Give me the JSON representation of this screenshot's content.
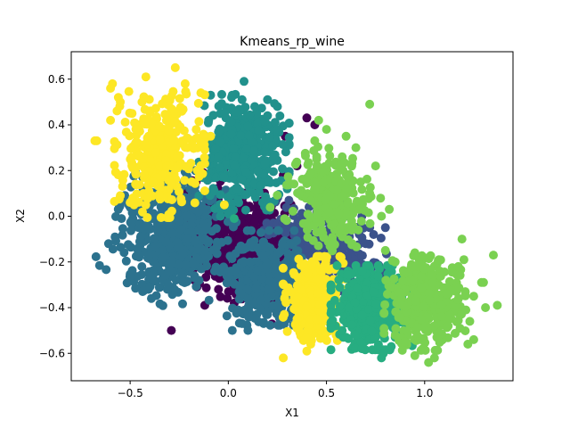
{
  "chart_data": {
    "type": "scatter",
    "title": "Kmeans_rp_wine",
    "xlabel": "X1",
    "ylabel": "X2",
    "xlim": [
      -0.8,
      1.45
    ],
    "ylim": [
      -0.72,
      0.72
    ],
    "xticks": [
      -0.5,
      0.0,
      0.5,
      1.0
    ],
    "xtick_labels": [
      "−0.5",
      "0.0",
      "0.5",
      "1.0"
    ],
    "yticks": [
      -0.6,
      -0.4,
      -0.2,
      0.0,
      0.2,
      0.4,
      0.6
    ],
    "ytick_labels": [
      "−0.6",
      "−0.4",
      "−0.2",
      "0.0",
      "0.2",
      "0.4",
      "0.6"
    ],
    "grid": false,
    "legend": false,
    "series": [
      {
        "color": "#440154",
        "center": [
          0.08,
          -0.13
        ],
        "spread": [
          0.16,
          0.11
        ],
        "count": 650,
        "rotation": -0.5,
        "points": [
          [
            0.29,
            0.35
          ],
          [
            0.4,
            0.43
          ],
          [
            0.44,
            0.4
          ],
          [
            0.05,
            0.21
          ],
          [
            -0.02,
            0.21
          ],
          [
            0.1,
            -0.4
          ],
          [
            -0.29,
            -0.5
          ],
          [
            0.42,
            0.19
          ],
          [
            0.08,
            -0.31
          ],
          [
            -0.05,
            -0.32
          ],
          [
            0.35,
            0.22
          ],
          [
            0.28,
            0.18
          ],
          [
            0.32,
            0.05
          ],
          [
            -0.16,
            -0.31
          ],
          [
            -0.12,
            -0.39
          ],
          [
            0.03,
            -0.38
          ]
        ]
      },
      {
        "color": "#3b528b",
        "center": [
          0.5,
          -0.14
        ],
        "spread": [
          0.14,
          0.07
        ],
        "count": 280,
        "rotation": -0.45,
        "points": [
          [
            0.6,
            0.06
          ],
          [
            0.68,
            0.0
          ],
          [
            0.72,
            -0.05
          ],
          [
            0.7,
            -0.12
          ],
          [
            0.74,
            -0.08
          ],
          [
            0.35,
            -0.08
          ],
          [
            0.8,
            -0.05
          ],
          [
            0.3,
            -0.22
          ],
          [
            0.6,
            0.0
          ]
        ]
      },
      {
        "color": "#2c728e",
        "center": [
          -0.28,
          -0.08
        ],
        "spread": [
          0.13,
          0.13
        ],
        "count": 500,
        "rotation": -0.5,
        "points": [
          [
            -0.61,
            -0.12
          ],
          [
            -0.31,
            -0.32
          ],
          [
            -0.45,
            -0.03
          ],
          [
            -0.44,
            -0.05
          ],
          [
            -0.39,
            -0.26
          ],
          [
            -0.17,
            -0.27
          ],
          [
            -0.07,
            -0.24
          ]
        ]
      },
      {
        "color": "#2c728e",
        "center": [
          0.2,
          -0.27
        ],
        "spread": [
          0.09,
          0.09
        ],
        "count": 400,
        "rotation": 0.0,
        "points": [
          [
            0.2,
            -0.43
          ],
          [
            0.18,
            -0.47
          ],
          [
            0.07,
            -0.47
          ],
          [
            0.1,
            -0.5
          ],
          [
            0.02,
            -0.5
          ],
          [
            0.3,
            -0.45
          ],
          [
            0.32,
            -0.41
          ],
          [
            0.05,
            -0.41
          ]
        ]
      },
      {
        "color": "#21918c",
        "center": [
          0.08,
          0.28
        ],
        "spread": [
          0.1,
          0.11
        ],
        "count": 450,
        "rotation": 0.0,
        "points": [
          [
            -0.09,
            0.53
          ],
          [
            0.08,
            0.59
          ],
          [
            0.02,
            0.53
          ],
          [
            0.07,
            0.51
          ],
          [
            0.2,
            0.51
          ],
          [
            0.25,
            0.48
          ],
          [
            0.2,
            0.44
          ],
          [
            -0.1,
            0.42
          ],
          [
            -0.05,
            0.37
          ],
          [
            -0.1,
            0.32
          ],
          [
            -0.12,
            0.25
          ],
          [
            0.15,
            0.2
          ],
          [
            -0.04,
            0.0
          ],
          [
            0.0,
            0.01
          ],
          [
            0.3,
            0.12
          ],
          [
            0.25,
            0.38
          ]
        ]
      },
      {
        "color": "#fde725",
        "center": [
          -0.35,
          0.27
        ],
        "spread": [
          0.1,
          0.12
        ],
        "count": 320,
        "rotation": 0.0,
        "points": [
          [
            -0.67,
            0.33
          ],
          [
            -0.68,
            0.33
          ],
          [
            -0.59,
            0.58
          ],
          [
            -0.6,
            0.56
          ],
          [
            -0.42,
            0.61
          ],
          [
            -0.27,
            0.65
          ],
          [
            -0.22,
            0.58
          ],
          [
            -0.56,
            0.52
          ],
          [
            -0.55,
            0.5
          ],
          [
            -0.6,
            0.42
          ],
          [
            -0.49,
            0.45
          ],
          [
            -0.44,
            0.5
          ],
          [
            -0.14,
            0.54
          ],
          [
            -0.55,
            0.09
          ],
          [
            -0.5,
            0.06
          ],
          [
            -0.48,
            0.05
          ],
          [
            -0.09,
            0.35
          ],
          [
            -0.16,
            0.34
          ]
        ]
      },
      {
        "color": "#fde725",
        "center": [
          0.44,
          -0.36
        ],
        "spread": [
          0.07,
          0.08
        ],
        "count": 350,
        "rotation": 0.0,
        "points": [
          [
            0.28,
            -0.62
          ],
          [
            0.4,
            -0.53
          ],
          [
            0.42,
            -0.56
          ],
          [
            0.4,
            -0.59
          ],
          [
            0.35,
            -0.49
          ],
          [
            0.35,
            -0.45
          ],
          [
            0.45,
            -0.45
          ],
          [
            0.55,
            -0.48
          ],
          [
            -0.02,
            0.05
          ]
        ]
      },
      {
        "color": "#27ad81",
        "center": [
          0.73,
          -0.4
        ],
        "spread": [
          0.09,
          0.08
        ],
        "count": 420,
        "rotation": 0.0,
        "points": [
          [
            0.78,
            -0.62
          ],
          [
            0.79,
            -0.6
          ],
          [
            0.9,
            -0.47
          ],
          [
            0.85,
            -0.53
          ],
          [
            0.6,
            -0.53
          ],
          [
            0.58,
            -0.5
          ],
          [
            0.68,
            -0.58
          ],
          [
            0.83,
            -0.57
          ],
          [
            0.03,
            -0.01
          ]
        ]
      },
      {
        "color": "#7ad151",
        "center": [
          0.52,
          0.08
        ],
        "spread": [
          0.1,
          0.09
        ],
        "count": 260,
        "rotation": -0.6,
        "points": [
          [
            0.72,
            0.49
          ],
          [
            0.6,
            0.35
          ],
          [
            0.65,
            0.3
          ],
          [
            0.58,
            0.26
          ],
          [
            0.63,
            0.23
          ],
          [
            0.5,
            0.38
          ],
          [
            0.46,
            0.42
          ],
          [
            0.44,
            0.33
          ],
          [
            0.45,
            0.25
          ],
          [
            0.75,
            0.22
          ],
          [
            0.72,
            0.1
          ],
          [
            0.82,
            0.03
          ],
          [
            0.78,
            0.0
          ]
        ]
      },
      {
        "color": "#7ad151",
        "center": [
          1.0,
          -0.38
        ],
        "spread": [
          0.09,
          0.09
        ],
        "count": 360,
        "rotation": 0.0,
        "points": [
          [
            1.19,
            -0.1
          ],
          [
            1.2,
            -0.19
          ],
          [
            1.35,
            -0.17
          ],
          [
            1.3,
            -0.29
          ],
          [
            1.29,
            -0.29
          ],
          [
            1.25,
            -0.35
          ],
          [
            1.37,
            -0.39
          ],
          [
            1.31,
            -0.4
          ],
          [
            1.21,
            -0.41
          ],
          [
            1.23,
            -0.46
          ],
          [
            1.18,
            -0.49
          ],
          [
            1.12,
            -0.48
          ],
          [
            1.25,
            -0.54
          ],
          [
            1.22,
            -0.56
          ],
          [
            1.05,
            -0.62
          ],
          [
            1.02,
            -0.64
          ],
          [
            0.95,
            -0.61
          ],
          [
            0.99,
            -0.58
          ],
          [
            0.9,
            -0.55
          ],
          [
            0.85,
            -0.2
          ],
          [
            0.8,
            -0.15
          ],
          [
            0.95,
            -0.16
          ]
        ]
      }
    ]
  }
}
